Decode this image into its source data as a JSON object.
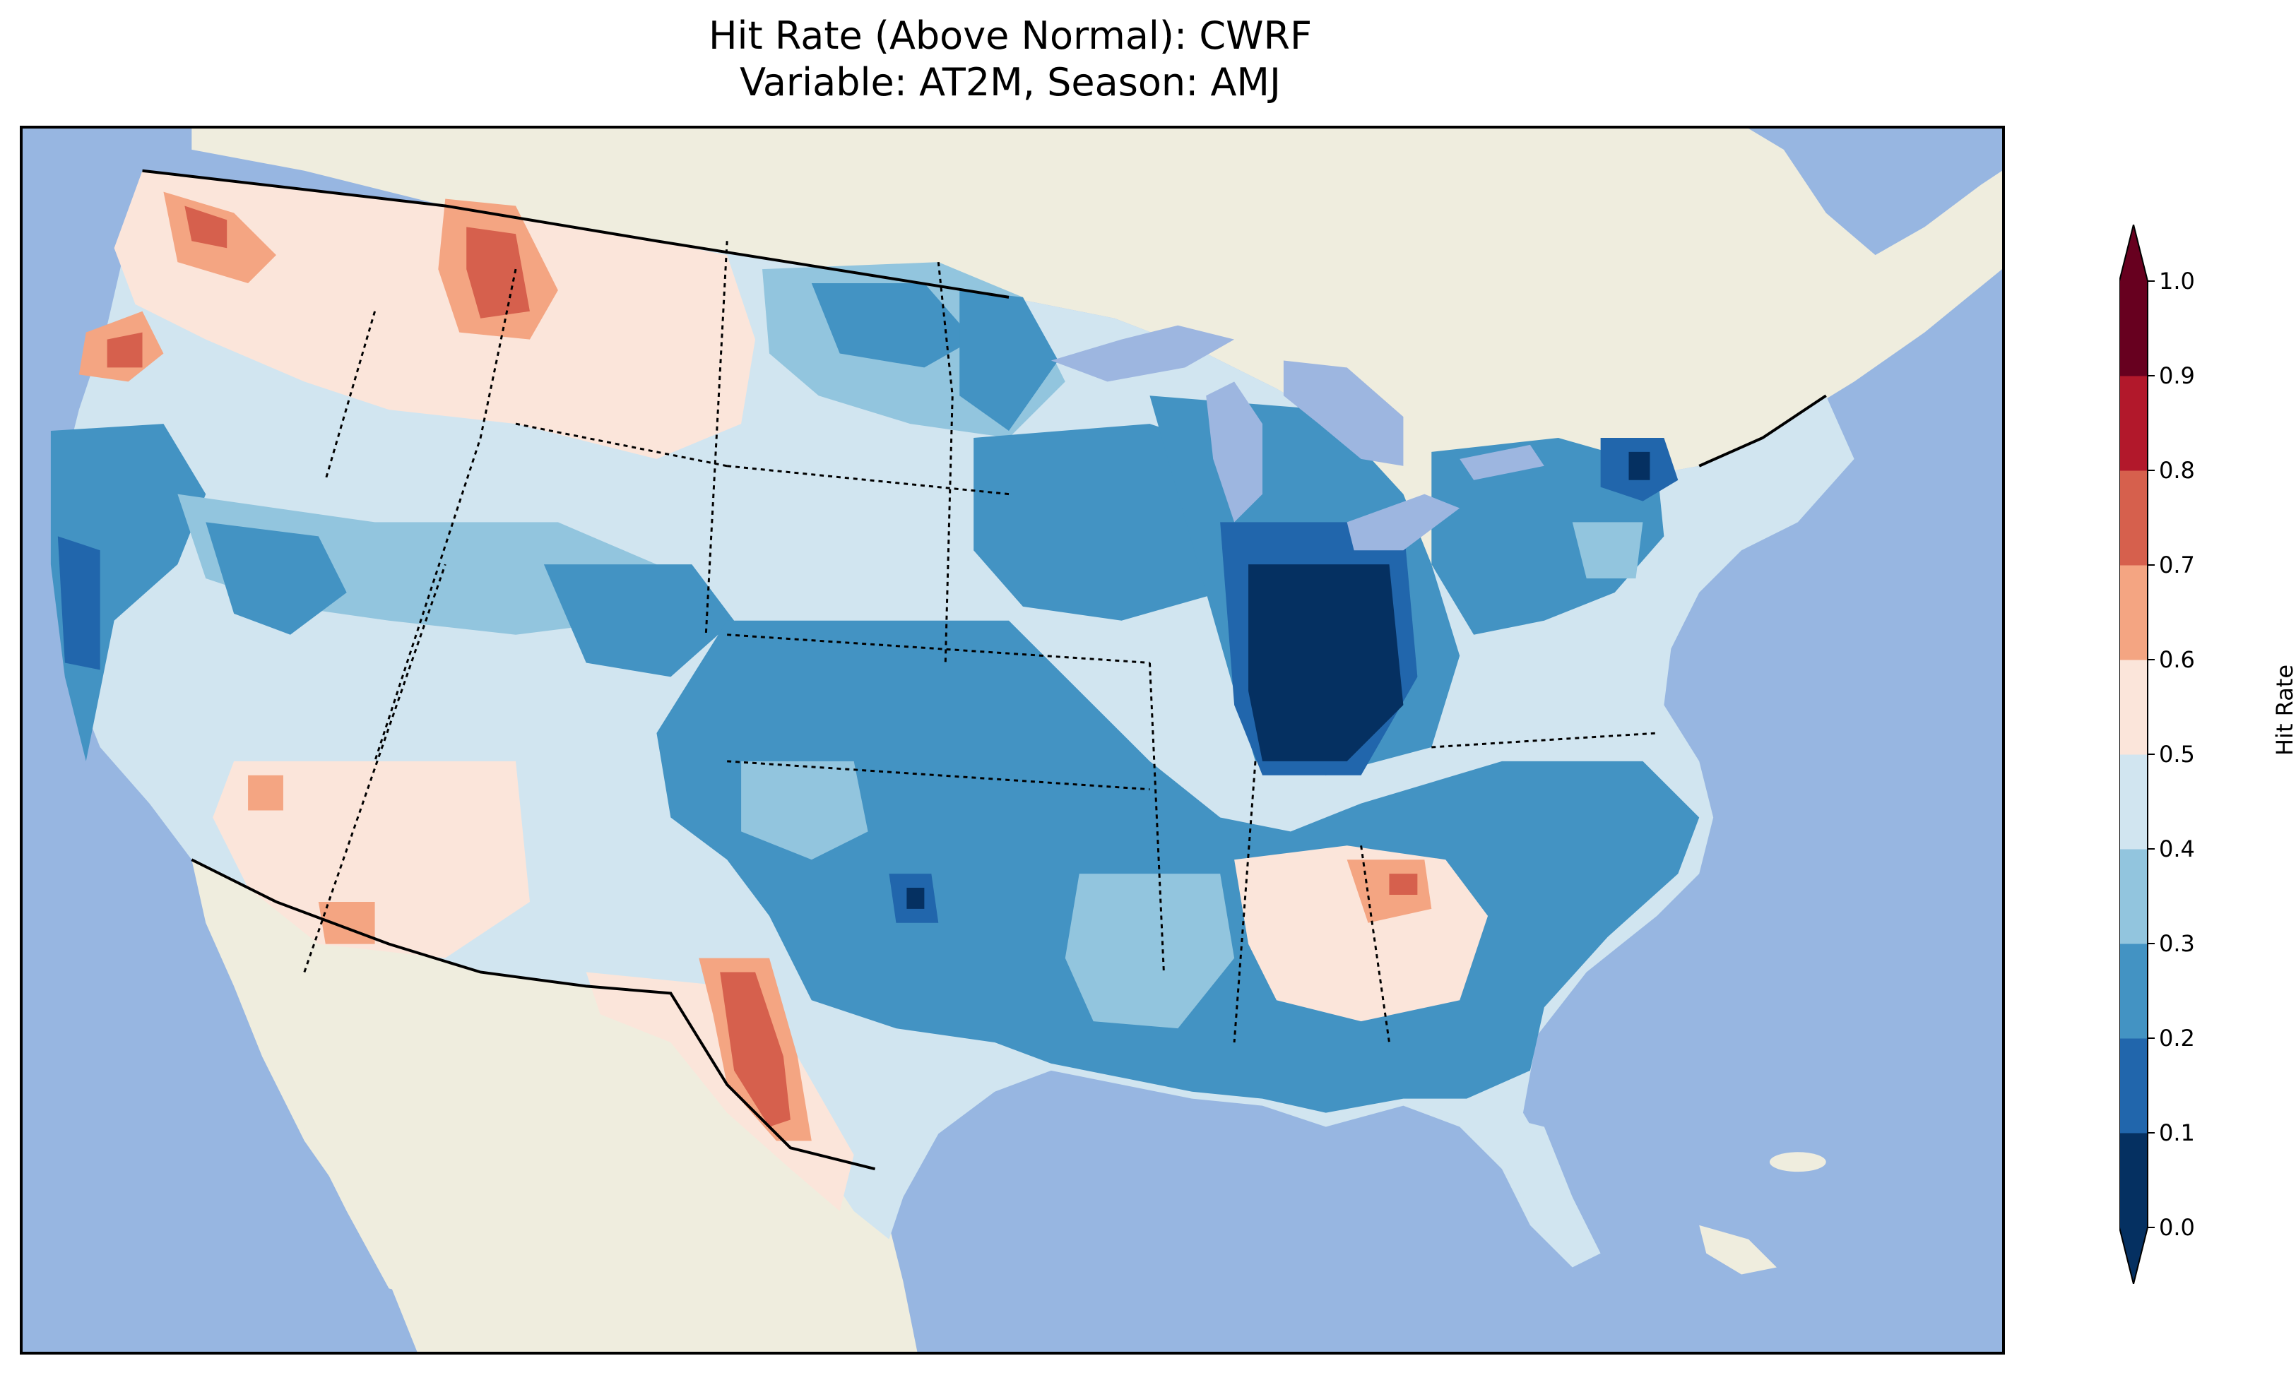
{
  "title": {
    "line1": "Hit Rate (Above Normal): CWRF",
    "line2": "Variable: AT2M, Season: AMJ"
  },
  "colors": {
    "ocean": "#97b6e1",
    "land": "#efedde",
    "lakes": "#9db6e0",
    "border": "#000000"
  },
  "colorbar": {
    "label": "Hit Rate",
    "ticks": [
      "0.0",
      "0.1",
      "0.2",
      "0.3",
      "0.4",
      "0.5",
      "0.6",
      "0.7",
      "0.8",
      "0.9",
      "1.0"
    ],
    "bins": [
      {
        "range": "0.0-0.1",
        "color": "#053061"
      },
      {
        "range": "0.1-0.2",
        "color": "#2166ac"
      },
      {
        "range": "0.2-0.3",
        "color": "#4393c3"
      },
      {
        "range": "0.3-0.4",
        "color": "#92c5de"
      },
      {
        "range": "0.4-0.5",
        "color": "#d1e5f0"
      },
      {
        "range": "0.5-0.6",
        "color": "#fbe5da"
      },
      {
        "range": "0.6-0.7",
        "color": "#f4a582"
      },
      {
        "range": "0.7-0.8",
        "color": "#d6604d"
      },
      {
        "range": "0.8-0.9",
        "color": "#b2182b"
      },
      {
        "range": "0.9-1.0",
        "color": "#67001f"
      }
    ],
    "extend": "both"
  }
}
